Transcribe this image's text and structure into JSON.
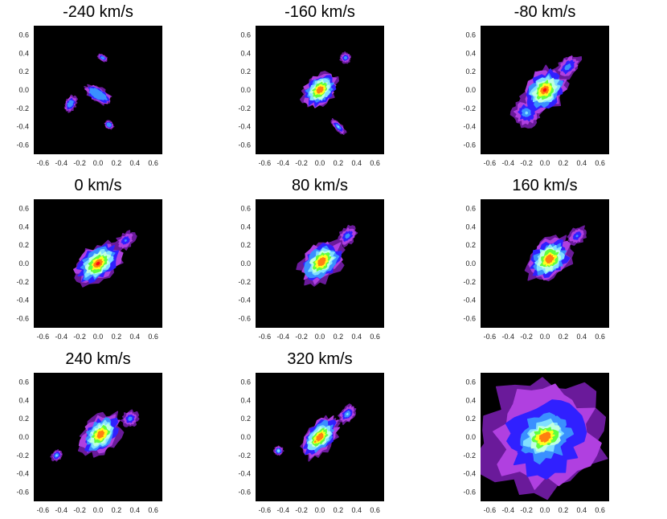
{
  "chart_data": {
    "type": "heatmap",
    "xlim": [
      -0.7,
      0.7
    ],
    "ylim": [
      -0.7,
      0.7
    ],
    "xticks": [
      "-0.6",
      "-0.4",
      "-0.2",
      "0.0",
      "0.2",
      "0.4",
      "0.6"
    ],
    "yticks": [
      "0.6",
      "0.4",
      "0.2",
      "0.0",
      "-0.2",
      "-0.4",
      "-0.6"
    ],
    "colorscale": [
      "#000000",
      "#6a1a9a",
      "#b040e0",
      "#3020ff",
      "#3a90ff",
      "#80e0ff",
      "#c0ffe0",
      "#60ff40",
      "#ffff20",
      "#ff8010",
      "#ff1010"
    ],
    "panels": [
      {
        "title": "-240 km/s",
        "peak": 0.45,
        "spread": 0.55,
        "angle": 60,
        "blobs": [
          [
            0.0,
            -0.05,
            0.15,
            0.3,
            0.9
          ],
          [
            0.12,
            -0.38,
            0.08,
            0.1,
            0.6
          ],
          [
            0.05,
            0.35,
            0.06,
            0.12,
            0.5
          ],
          [
            -0.3,
            -0.15,
            0.2,
            0.12,
            0.55
          ]
        ]
      },
      {
        "title": "-160 km/s",
        "peak": 0.95,
        "spread": 0.85,
        "angle": 45,
        "blobs": [
          [
            0.0,
            0.0,
            0.28,
            0.2,
            1.0
          ],
          [
            0.2,
            -0.4,
            0.05,
            0.15,
            0.5
          ],
          [
            0.28,
            0.35,
            0.08,
            0.08,
            0.45
          ]
        ]
      },
      {
        "title": "-80 km/s",
        "peak": 1.0,
        "spread": 1.0,
        "angle": 45,
        "blobs": [
          [
            0.0,
            0.0,
            0.3,
            0.22,
            1.0
          ],
          [
            -0.2,
            -0.25,
            0.18,
            0.18,
            0.5
          ],
          [
            0.25,
            0.25,
            0.2,
            0.12,
            0.45
          ]
        ]
      },
      {
        "title": "0 km/s",
        "peak": 0.98,
        "spread": 1.0,
        "angle": 40,
        "blobs": [
          [
            0.0,
            0.0,
            0.32,
            0.2,
            1.0
          ],
          [
            0.3,
            0.25,
            0.15,
            0.1,
            0.4
          ]
        ]
      },
      {
        "title": "80 km/s",
        "peak": 0.9,
        "spread": 1.0,
        "angle": 45,
        "blobs": [
          [
            0.02,
            0.02,
            0.3,
            0.2,
            1.0
          ],
          [
            0.3,
            0.3,
            0.15,
            0.1,
            0.45
          ]
        ]
      },
      {
        "title": "160 km/s",
        "peak": 0.95,
        "spread": 1.0,
        "angle": 45,
        "blobs": [
          [
            0.05,
            0.05,
            0.3,
            0.22,
            1.0
          ],
          [
            0.35,
            0.3,
            0.15,
            0.1,
            0.4
          ]
        ]
      },
      {
        "title": "240 km/s",
        "peak": 0.88,
        "spread": 0.95,
        "angle": 45,
        "blobs": [
          [
            0.03,
            0.03,
            0.3,
            0.2,
            1.0
          ],
          [
            0.35,
            0.2,
            0.12,
            0.1,
            0.45
          ],
          [
            -0.45,
            -0.2,
            0.08,
            0.06,
            0.5
          ]
        ]
      },
      {
        "title": "320 km/s",
        "peak": 0.95,
        "spread": 0.9,
        "angle": 50,
        "blobs": [
          [
            0.0,
            0.0,
            0.32,
            0.18,
            1.0
          ],
          [
            -0.05,
            -0.05,
            0.14,
            0.08,
            0.9
          ],
          [
            0.3,
            0.25,
            0.15,
            0.1,
            0.5
          ],
          [
            -0.45,
            -0.15,
            0.06,
            0.06,
            0.55
          ]
        ]
      },
      {
        "title": "",
        "peak": 0.97,
        "spread": 1.4,
        "angle": 30,
        "blobs": [
          [
            0.0,
            0.0,
            0.28,
            0.2,
            1.0
          ],
          [
            0.0,
            0.0,
            0.6,
            0.55,
            0.55
          ]
        ]
      }
    ]
  }
}
